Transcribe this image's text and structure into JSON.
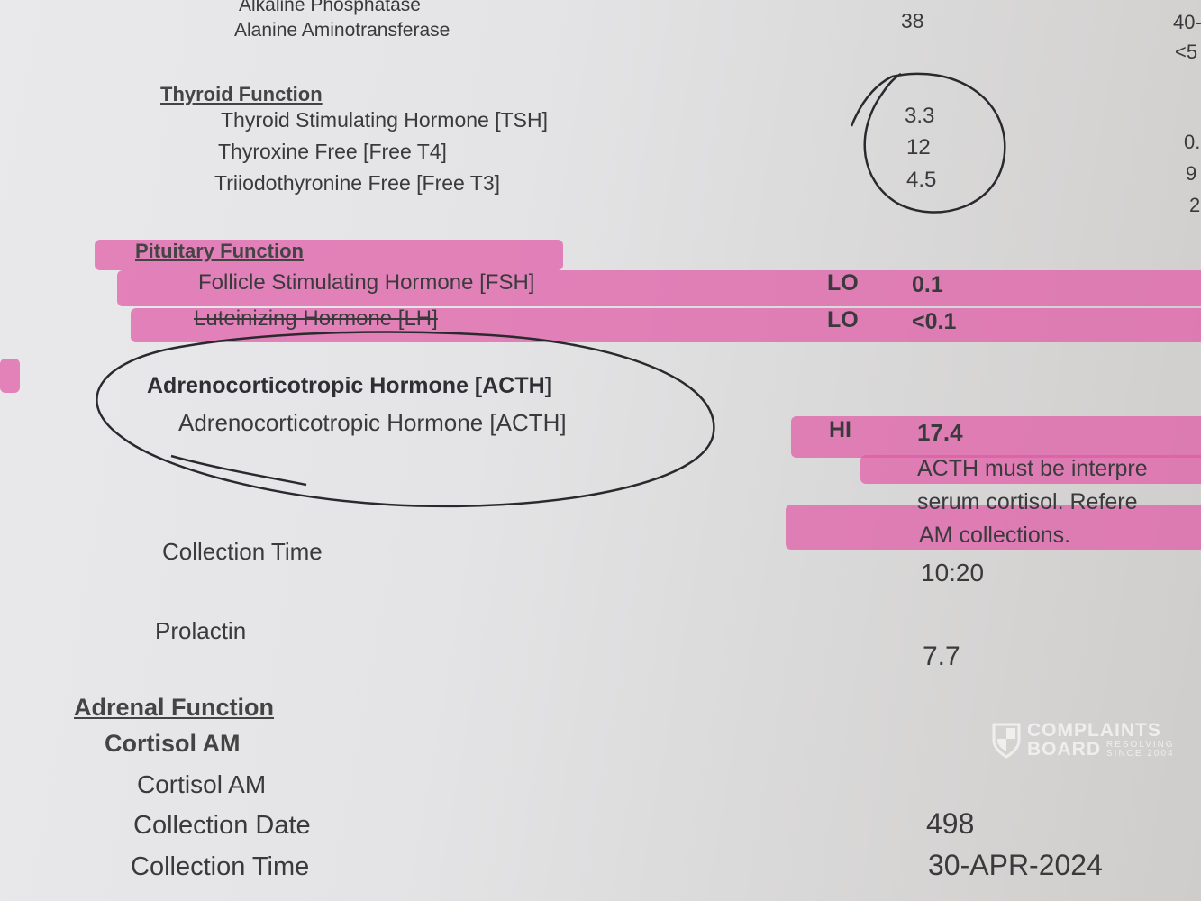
{
  "liver": {
    "rows": [
      {
        "name": "Alkaline Phosphatase",
        "value": "",
        "range": "40-"
      },
      {
        "name": "Alanine Aminotransferase",
        "value": "38",
        "range": "<5"
      }
    ]
  },
  "thyroid": {
    "heading": "Thyroid Function",
    "rows": [
      {
        "name": "Thyroid Stimulating Hormone [TSH]",
        "value": "3.3",
        "range": ""
      },
      {
        "name": "Thyroxine Free [Free T4]",
        "value": "12",
        "range": "0."
      },
      {
        "name": "Triiodothyronine Free [Free T3]",
        "value": "4.5",
        "range": "9"
      }
    ],
    "extra_range": "2"
  },
  "pituitary": {
    "heading": "Pituitary Function",
    "rows": [
      {
        "name": "Follicle Stimulating Hormone [FSH]",
        "flag": "LO",
        "value": "0.1"
      },
      {
        "name": "Luteinizing Hormone [LH]",
        "flag": "LO",
        "value": "<0.1"
      }
    ]
  },
  "acth": {
    "heading": "Adrenocorticotropic Hormone [ACTH]",
    "name": "Adrenocorticotropic Hormone [ACTH]",
    "flag": "HI",
    "value": "17.4",
    "note_lines": [
      "ACTH must be interpre",
      "serum cortisol.  Refere",
      "AM collections."
    ],
    "collection_time_label": "Collection Time",
    "collection_time": "10:20"
  },
  "prolactin": {
    "name": "Prolactin",
    "value": "7.7"
  },
  "adrenal": {
    "heading": "Adrenal Function",
    "subheading": "Cortisol AM",
    "rows": [
      {
        "name": "Cortisol AM",
        "value": "498"
      },
      {
        "name": "Collection Date",
        "value": "30-APR-2024"
      },
      {
        "name": "Collection Time",
        "value": ""
      }
    ]
  },
  "watermark": {
    "line1": "COMPLAINTS",
    "line2": "BOARD",
    "tag1": "RESOLVING",
    "tag2": "SINCE 2004"
  },
  "colors": {
    "highlighter": "#e05aa6",
    "ink": "#2a2a2e",
    "paper": "#e6e6e8"
  }
}
